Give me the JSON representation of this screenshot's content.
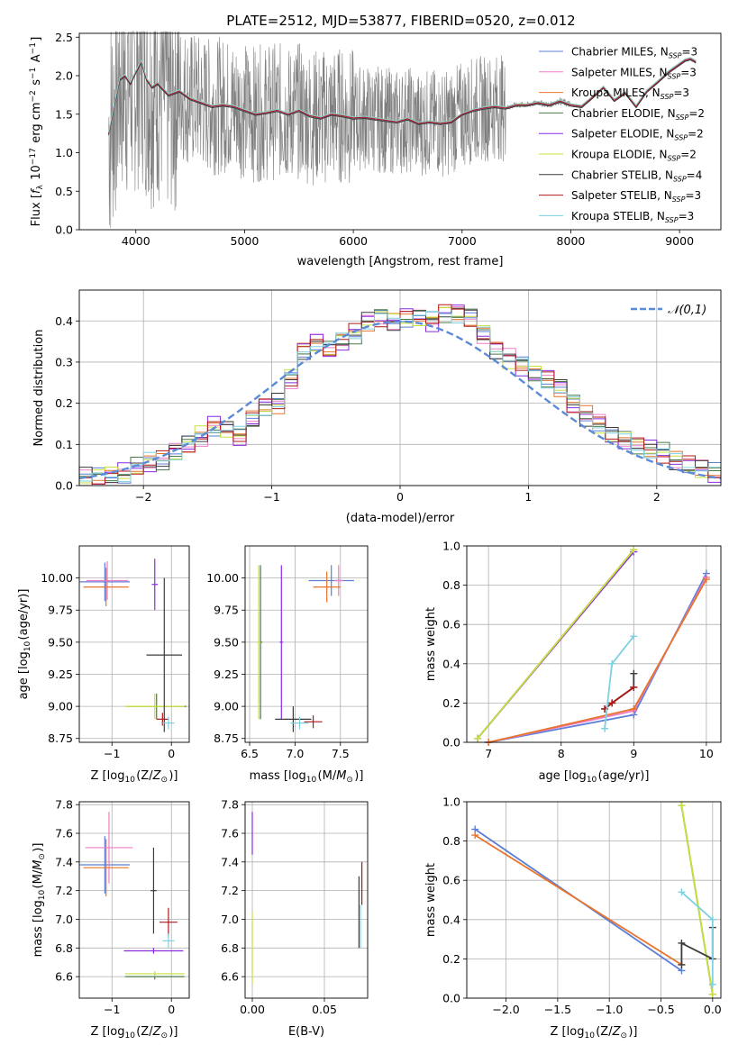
{
  "figure": {
    "title": "PLATE=2512, MJD=53877, FIBERID=0520, z=0.012"
  },
  "colors": {
    "Chabrier MILES": "#5b7fd6",
    "Salpeter MILES": "#f07cc8",
    "Kroupa MILES": "#e8742c",
    "Chabrier ELODIE": "#4a7a4a",
    "Salpeter ELODIE": "#8a2be2",
    "Kroupa ELODIE": "#c8e03a",
    "Chabrier STELIB": "#3c3c3c",
    "Salpeter STELIB": "#b01818",
    "Kroupa STELIB": "#7fd0e0",
    "data": "#7f7f7f",
    "normal": "#5b8bd6"
  },
  "chart_data": [
    {
      "id": "spectrum",
      "type": "line",
      "title": "PLATE=2512, MJD=53877, FIBERID=0520, z=0.012",
      "xlabel": "wavelength [Angstrom, rest frame]",
      "ylabel": "Flux [f_λ 10^-17 erg cm^-2 s^-1 A^-1]",
      "xlim": [
        3480,
        9380
      ],
      "ylim": [
        0,
        2.55
      ],
      "xticks": [
        4000,
        5000,
        6000,
        7000,
        8000,
        9000
      ],
      "yticks": [
        0.0,
        0.5,
        1.0,
        1.5,
        2.0,
        2.5
      ],
      "grid": false,
      "legend_position": "top-right",
      "series": [
        {
          "name": "Chabrier MILES, N_SSP=3"
        },
        {
          "name": "Salpeter MILES, N_SSP=3"
        },
        {
          "name": "Kroupa MILES, N_SSP=3"
        },
        {
          "name": "Chabrier ELODIE, N_SSP=2"
        },
        {
          "name": "Salpeter ELODIE, N_SSP=2"
        },
        {
          "name": "Kroupa ELODIE, N_SSP=2"
        },
        {
          "name": "Chabrier STELIB, N_SSP=4"
        },
        {
          "name": "Salpeter STELIB, N_SSP=3"
        },
        {
          "name": "Kroupa STELIB, N_SSP=3"
        }
      ],
      "model_x": [
        3750,
        3800,
        3850,
        3900,
        3950,
        4000,
        4050,
        4100,
        4150,
        4200,
        4300,
        4400,
        4500,
        4600,
        4700,
        4800,
        4900,
        5000,
        5100,
        5200,
        5300,
        5400,
        5500,
        5600,
        5700,
        5800,
        5900,
        6000,
        6100,
        6200,
        6300,
        6400,
        6500,
        6600,
        6700,
        6800,
        6900,
        7000,
        7100,
        7200,
        7300,
        7400,
        7500,
        7600,
        7700,
        7800,
        7900,
        8000,
        8100,
        8200,
        8300,
        8400,
        8500,
        8600,
        8700,
        8800,
        8900,
        9000,
        9050,
        9100,
        9150
      ],
      "model_y": [
        1.25,
        1.6,
        1.95,
        2.0,
        1.9,
        2.05,
        2.18,
        1.95,
        1.85,
        1.9,
        1.75,
        1.8,
        1.7,
        1.65,
        1.6,
        1.62,
        1.6,
        1.55,
        1.5,
        1.52,
        1.55,
        1.5,
        1.55,
        1.48,
        1.45,
        1.5,
        1.48,
        1.45,
        1.46,
        1.44,
        1.42,
        1.4,
        1.44,
        1.38,
        1.4,
        1.38,
        1.4,
        1.5,
        1.55,
        1.58,
        1.6,
        1.58,
        1.62,
        1.62,
        1.65,
        1.62,
        1.67,
        1.62,
        1.6,
        1.72,
        1.85,
        1.68,
        1.78,
        1.6,
        1.8,
        1.92,
        2.05,
        2.15,
        2.2,
        2.22,
        2.18
      ]
    },
    {
      "id": "residuals",
      "type": "histogram",
      "xlabel": "(data-model)/error",
      "ylabel": "Normed distribution",
      "xlim": [
        -2.5,
        2.5
      ],
      "ylim": [
        0,
        0.475
      ],
      "xticks": [
        -2,
        -1,
        0,
        1,
        2
      ],
      "yticks": [
        0.0,
        0.1,
        0.2,
        0.3,
        0.4
      ],
      "grid": true,
      "legend_position": "top-right",
      "legend": [
        "𝒩(0,1)"
      ],
      "bin_edges": [
        -2.5,
        -2.4,
        -2.3,
        -2.2,
        -2.1,
        -2.0,
        -1.9,
        -1.8,
        -1.7,
        -1.6,
        -1.5,
        -1.4,
        -1.3,
        -1.2,
        -1.1,
        -1.0,
        -0.9,
        -0.8,
        -0.7,
        -0.6,
        -0.5,
        -0.4,
        -0.3,
        -0.2,
        -0.1,
        0.0,
        0.1,
        0.2,
        0.3,
        0.4,
        0.5,
        0.6,
        0.7,
        0.8,
        0.9,
        1.0,
        1.1,
        1.2,
        1.3,
        1.4,
        1.5,
        1.6,
        1.7,
        1.8,
        1.9,
        2.0,
        2.1,
        2.2,
        2.3,
        2.4,
        2.5
      ],
      "counts": [
        0.02,
        0.02,
        0.025,
        0.03,
        0.045,
        0.055,
        0.06,
        0.08,
        0.1,
        0.12,
        0.145,
        0.14,
        0.12,
        0.16,
        0.19,
        0.2,
        0.26,
        0.33,
        0.35,
        0.33,
        0.35,
        0.37,
        0.4,
        0.41,
        0.4,
        0.41,
        0.41,
        0.4,
        0.42,
        0.42,
        0.41,
        0.37,
        0.33,
        0.31,
        0.29,
        0.27,
        0.26,
        0.24,
        0.2,
        0.17,
        0.15,
        0.12,
        0.11,
        0.1,
        0.09,
        0.08,
        0.06,
        0.05,
        0.04,
        0.03
      ],
      "normal_curve": {
        "mean": 0,
        "std": 1
      }
    },
    {
      "id": "age-vs-Z",
      "type": "errorbar",
      "xlabel": "Z [log10(Z/Z☉)]",
      "ylabel": "age  [log10(age/yr)]",
      "xlim": [
        -1.55,
        0.3
      ],
      "ylim": [
        8.72,
        10.25
      ],
      "xticks": [
        -1,
        0
      ],
      "yticks": [
        8.75,
        9.0,
        9.25,
        9.5,
        9.75,
        10.0
      ],
      "grid": true,
      "points": [
        {
          "model": "Chabrier MILES",
          "x": -1.12,
          "y": 9.97,
          "xerr": 0.42,
          "yerr": 0.15
        },
        {
          "model": "Salpeter MILES",
          "x": -1.08,
          "y": 9.98,
          "xerr": 0.35,
          "yerr": 0.15
        },
        {
          "model": "Kroupa MILES",
          "x": -1.1,
          "y": 9.93,
          "xerr": 0.38,
          "yerr": 0.15
        },
        {
          "model": "Chabrier ELODIE",
          "x": -0.25,
          "y": 9.0,
          "xerr": 0.5,
          "yerr": 0.1
        },
        {
          "model": "Salpeter ELODIE",
          "x": -0.28,
          "y": 9.95,
          "xerr": 0.05,
          "yerr": 0.2
        },
        {
          "model": "Kroupa ELODIE",
          "x": -0.28,
          "y": 9.0,
          "xerr": 0.5,
          "yerr": 0.1
        },
        {
          "model": "Chabrier STELIB",
          "x": -0.12,
          "y": 9.4,
          "xerr": 0.3,
          "yerr": 0.6
        },
        {
          "model": "Salpeter STELIB",
          "x": -0.15,
          "y": 8.9,
          "xerr": 0.1,
          "yerr": 0.05
        },
        {
          "model": "Kroupa STELIB",
          "x": -0.05,
          "y": 8.87,
          "xerr": 0.1,
          "yerr": 0.05
        }
      ]
    },
    {
      "id": "age-vs-mass",
      "type": "errorbar",
      "xlabel": "mass [log10(M/M☉)]",
      "ylabel": "",
      "xlim": [
        6.45,
        7.8
      ],
      "ylim": [
        8.72,
        10.25
      ],
      "xticks": [
        6.5,
        7.0,
        7.5
      ],
      "yticks": [
        8.75,
        9.0,
        9.25,
        9.5,
        9.75,
        10.0
      ],
      "grid": true,
      "points": [
        {
          "model": "Chabrier MILES",
          "x": 7.4,
          "y": 9.98,
          "xerr": 0.25,
          "yerr": 0.12
        },
        {
          "model": "Salpeter MILES",
          "x": 7.48,
          "y": 9.98,
          "xerr": 0.05,
          "yerr": 0.12
        },
        {
          "model": "Kroupa MILES",
          "x": 7.35,
          "y": 9.93,
          "xerr": 0.15,
          "yerr": 0.12
        },
        {
          "model": "Chabrier ELODIE",
          "x": 6.62,
          "y": 9.5,
          "xerr": 0.02,
          "yerr": 0.6
        },
        {
          "model": "Salpeter ELODIE",
          "x": 6.85,
          "y": 9.5,
          "xerr": 0.02,
          "yerr": 0.6
        },
        {
          "model": "Kroupa ELODIE",
          "x": 6.6,
          "y": 9.5,
          "xerr": 0.02,
          "yerr": 0.6
        },
        {
          "model": "Chabrier STELIB",
          "x": 6.98,
          "y": 8.9,
          "xerr": 0.2,
          "yerr": 0.1
        },
        {
          "model": "Salpeter STELIB",
          "x": 7.2,
          "y": 8.88,
          "xerr": 0.1,
          "yerr": 0.05
        },
        {
          "model": "Kroupa STELIB",
          "x": 7.05,
          "y": 8.87,
          "xerr": 0.1,
          "yerr": 0.05
        }
      ]
    },
    {
      "id": "weight-vs-age",
      "type": "line",
      "xlabel": "age  [log10(age/yr)]",
      "ylabel": "mass weight",
      "xlim": [
        6.7,
        10.2
      ],
      "ylim": [
        0,
        1.0
      ],
      "xticks": [
        7,
        8,
        9,
        10
      ],
      "yticks": [
        0.0,
        0.2,
        0.4,
        0.6,
        0.8,
        1.0
      ],
      "grid": true,
      "series": [
        {
          "model": "Chabrier MILES",
          "x": [
            7.0,
            9.0,
            10.0
          ],
          "y": [
            0.0,
            0.14,
            0.86
          ]
        },
        {
          "model": "Salpeter MILES",
          "x": [
            7.0,
            9.0,
            10.0
          ],
          "y": [
            0.0,
            0.16,
            0.84
          ]
        },
        {
          "model": "Kroupa MILES",
          "x": [
            7.0,
            9.0,
            10.0
          ],
          "y": [
            0.0,
            0.17,
            0.83
          ]
        },
        {
          "model": "Chabrier ELODIE",
          "x": [
            6.85,
            9.0
          ],
          "y": [
            0.02,
            0.98
          ]
        },
        {
          "model": "Salpeter ELODIE",
          "x": [
            6.85,
            9.0
          ],
          "y": [
            0.02,
            0.97
          ]
        },
        {
          "model": "Kroupa ELODIE",
          "x": [
            6.85,
            9.0
          ],
          "y": [
            0.02,
            0.98
          ]
        },
        {
          "model": "Chabrier STELIB",
          "x": [
            8.6,
            8.7,
            9.0,
            9.0
          ],
          "y": [
            0.17,
            0.2,
            0.28,
            0.35
          ]
        },
        {
          "model": "Salpeter STELIB",
          "x": [
            8.6,
            8.7,
            9.0
          ],
          "y": [
            0.17,
            0.2,
            0.28
          ]
        },
        {
          "model": "Kroupa STELIB",
          "x": [
            8.6,
            8.7,
            9.0
          ],
          "y": [
            0.07,
            0.4,
            0.54
          ]
        }
      ]
    },
    {
      "id": "mass-vs-Z",
      "type": "errorbar",
      "xlabel": "Z [log10(Z/Z☉)]",
      "ylabel": "mass [log10(M/M☉)]",
      "xlim": [
        -1.55,
        0.3
      ],
      "ylim": [
        6.45,
        7.82
      ],
      "xticks": [
        -1,
        0
      ],
      "yticks": [
        6.6,
        6.8,
        7.0,
        7.2,
        7.4,
        7.6,
        7.8
      ],
      "grid": true,
      "points": [
        {
          "model": "Chabrier MILES",
          "x": -1.12,
          "y": 7.38,
          "xerr": 0.42,
          "yerr": 0.2
        },
        {
          "model": "Salpeter MILES",
          "x": -1.05,
          "y": 7.5,
          "xerr": 0.4,
          "yerr": 0.25
        },
        {
          "model": "Kroupa MILES",
          "x": -1.1,
          "y": 7.36,
          "xerr": 0.38,
          "yerr": 0.2
        },
        {
          "model": "Chabrier ELODIE",
          "x": -0.28,
          "y": 6.6,
          "xerr": 0.5,
          "yerr": 0.02
        },
        {
          "model": "Salpeter ELODIE",
          "x": -0.3,
          "y": 6.78,
          "xerr": 0.5,
          "yerr": 0.02
        },
        {
          "model": "Kroupa ELODIE",
          "x": -0.28,
          "y": 6.62,
          "xerr": 0.5,
          "yerr": 0.02
        },
        {
          "model": "Chabrier STELIB",
          "x": -0.3,
          "y": 7.2,
          "xerr": 0.05,
          "yerr": 0.3
        },
        {
          "model": "Salpeter STELIB",
          "x": -0.05,
          "y": 6.98,
          "xerr": 0.15,
          "yerr": 0.1
        },
        {
          "model": "Kroupa STELIB",
          "x": -0.05,
          "y": 6.85,
          "xerr": 0.1,
          "yerr": 0.05
        }
      ]
    },
    {
      "id": "mass-vs-EBV",
      "type": "errorbar",
      "xlabel": "E(B-V)",
      "ylabel": "",
      "xlim": [
        -0.005,
        0.08
      ],
      "ylim": [
        6.45,
        7.82
      ],
      "xticks": [
        0.0,
        0.05
      ],
      "yticks": [
        6.6,
        6.8,
        7.0,
        7.2,
        7.4,
        7.6,
        7.8
      ],
      "grid": true,
      "points": [
        {
          "model": "Salpeter ELODIE",
          "x": 0.0,
          "y": 7.6,
          "xerr": 0.0,
          "yerr": 0.15
        },
        {
          "model": "Kroupa ELODIE",
          "x": 0.0,
          "y": 6.8,
          "xerr": 0.0,
          "yerr": 0.25
        },
        {
          "model": "Chabrier STELIB",
          "x": 0.074,
          "y": 7.05,
          "xerr": 0.0,
          "yerr": 0.25
        },
        {
          "model": "Salpeter STELIB",
          "x": 0.076,
          "y": 7.25,
          "xerr": 0.0,
          "yerr": 0.15
        },
        {
          "model": "Kroupa STELIB",
          "x": 0.075,
          "y": 6.95,
          "xerr": 0.0,
          "yerr": 0.15
        }
      ]
    },
    {
      "id": "weight-vs-Z",
      "type": "line",
      "xlabel": "Z [log10(Z/Z☉)]",
      "ylabel": "mass weight",
      "xlim": [
        -2.38,
        0.08
      ],
      "ylim": [
        0,
        1.0
      ],
      "xticks": [
        -2.0,
        -1.5,
        -1.0,
        -0.5,
        0.0
      ],
      "yticks": [
        0.0,
        0.2,
        0.4,
        0.6,
        0.8,
        1.0
      ],
      "grid": true,
      "series": [
        {
          "model": "Chabrier MILES",
          "x": [
            -2.3,
            -0.3
          ],
          "y": [
            0.86,
            0.14
          ]
        },
        {
          "model": "Kroupa MILES",
          "x": [
            -2.3,
            -0.3
          ],
          "y": [
            0.83,
            0.17
          ]
        },
        {
          "model": "Chabrier ELODIE",
          "x": [
            -0.3,
            0.0
          ],
          "y": [
            0.98,
            0.02
          ]
        },
        {
          "model": "Kroupa ELODIE",
          "x": [
            -0.3,
            0.0
          ],
          "y": [
            0.98,
            0.02
          ]
        },
        {
          "model": "Chabrier STELIB",
          "x": [
            -0.3,
            -0.3,
            0.0,
            0.0
          ],
          "y": [
            0.17,
            0.28,
            0.2,
            0.36
          ]
        },
        {
          "model": "Kroupa STELIB",
          "x": [
            -0.3,
            0.0,
            0.0
          ],
          "y": [
            0.54,
            0.4,
            0.07
          ]
        }
      ]
    }
  ]
}
